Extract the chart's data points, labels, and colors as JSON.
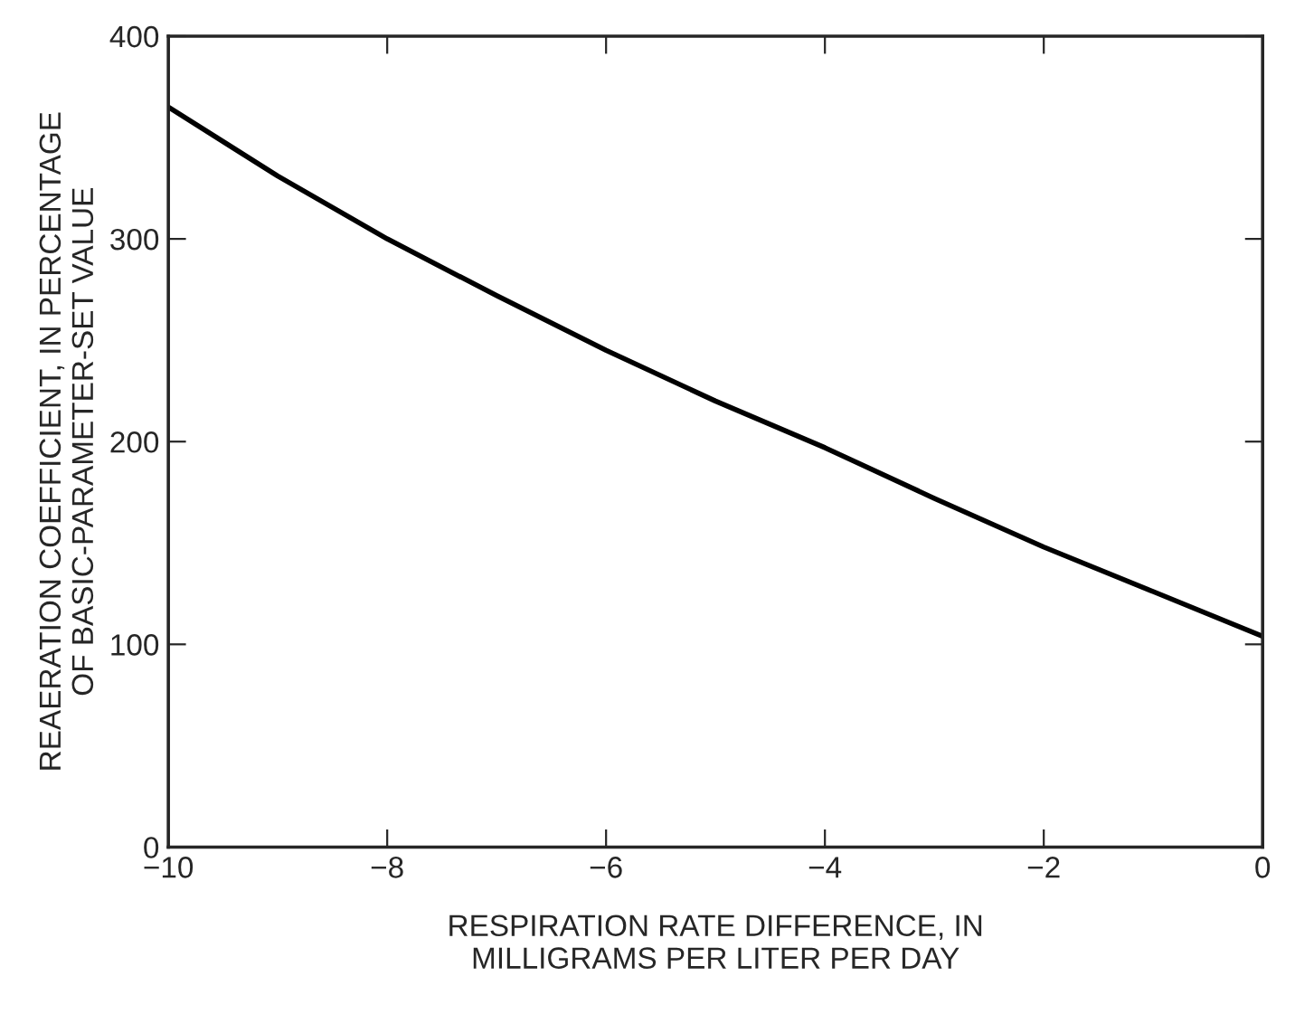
{
  "chart_data": {
    "type": "line",
    "xlabel": "RESPIRATION RATE DIFFERENCE, IN\nMILLIGRAMS PER LITER PER DAY",
    "ylabel": "REAERATION COEFFICIENT, IN PERCENTAGE\nOF BASIC-PARAMETER-SET VALUE",
    "series": [
      {
        "color": "#000000",
        "x": [
          -10,
          -9,
          -8,
          -7,
          -6,
          -5,
          -4,
          -3,
          -2,
          -1,
          0
        ],
        "values": [
          365,
          331,
          300,
          272,
          245,
          220,
          197,
          172,
          148,
          126,
          104
        ]
      }
    ],
    "xlim": [
      -10,
      0
    ],
    "xticks": [
      {
        "value": -10,
        "label": "−10"
      },
      {
        "value": -8,
        "label": "−8"
      },
      {
        "value": -6,
        "label": "−6"
      },
      {
        "value": -4,
        "label": "−4"
      },
      {
        "value": -2,
        "label": "−2"
      },
      0
    ],
    "ylim": [
      0,
      400
    ],
    "yticks": [
      0,
      100,
      200,
      300,
      400
    ],
    "grid": false,
    "marker": "none",
    "line_style": "solid"
  }
}
